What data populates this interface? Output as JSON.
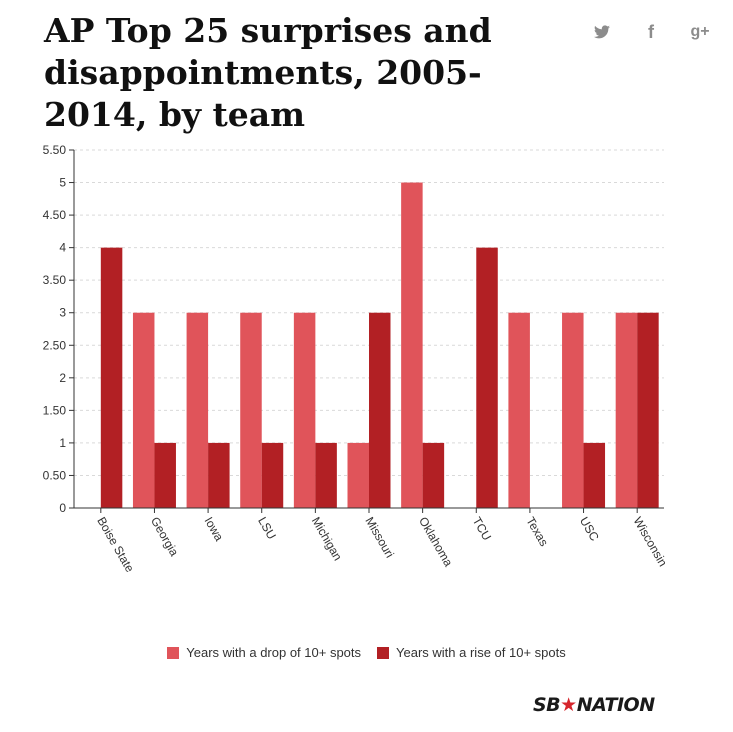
{
  "header": {
    "title": "AP Top 25 surprises and disappointments, 2005-2014, by team"
  },
  "social": {
    "twitter_icon": "twitter-icon",
    "facebook_icon": "facebook-icon",
    "googleplus_icon": "google-plus-icon",
    "facebook_glyph": "f",
    "googleplus_glyph": "g+"
  },
  "colors": {
    "drop": "#e0545a",
    "rise": "#b22024",
    "grid": "#d9d9d9",
    "axis": "#333333"
  },
  "chart_data": {
    "type": "bar",
    "title": "AP Top 25 surprises and disappointments, 2005-2014, by team",
    "xlabel": "",
    "ylabel": "",
    "ylim": [
      0,
      5.5
    ],
    "yticks": [
      "0",
      "0.50",
      "1",
      "1.50",
      "2",
      "2.50",
      "3",
      "3.50",
      "4",
      "4.50",
      "5",
      "5.50"
    ],
    "ytick_values": [
      0,
      0.5,
      1,
      1.5,
      2,
      2.5,
      3,
      3.5,
      4,
      4.5,
      5,
      5.5
    ],
    "grid": true,
    "legend_position": "bottom",
    "categories": [
      "Boise State",
      "Georgia",
      "Iowa",
      "LSU",
      "Michigan",
      "Missouri",
      "Oklahoma",
      "TCU",
      "Texas",
      "USC",
      "Wisconsin"
    ],
    "series": [
      {
        "name": "Years with a drop of 10+ spots",
        "values": [
          0,
          3,
          3,
          3,
          3,
          1,
          5,
          0,
          3,
          3,
          3
        ]
      },
      {
        "name": "Years with a rise of 10+ spots",
        "values": [
          4,
          1,
          1,
          1,
          1,
          3,
          1,
          4,
          0,
          1,
          3
        ]
      }
    ]
  },
  "branding": {
    "logo_left": "SB",
    "logo_star": "★",
    "logo_right": "NATION"
  }
}
